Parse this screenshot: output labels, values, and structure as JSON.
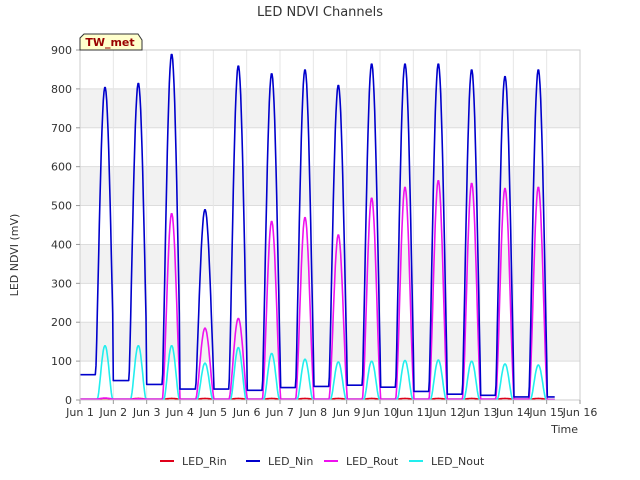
{
  "chart_data": {
    "type": "line",
    "title": "LED NDVI Channels",
    "xlabel": "Time",
    "ylabel": "LED NDVI (mV)",
    "xlim": [
      1,
      16
    ],
    "ylim": [
      0,
      900
    ],
    "x_ticks": [
      1,
      2,
      3,
      4,
      5,
      6,
      7,
      8,
      9,
      10,
      11,
      12,
      13,
      14,
      15,
      16
    ],
    "x_tick_labels": [
      "Jun 1",
      "Jun 2",
      "Jun 3",
      "Jun 4",
      "Jun 5",
      "Jun 6",
      "Jun 7",
      "Jun 8",
      "Jun 9",
      "Jun 10",
      "Jun 11",
      "Jun 12",
      "Jun 13",
      "Jun 14",
      "Jun 15",
      "Jun 16"
    ],
    "y_ticks": [
      0,
      100,
      200,
      300,
      400,
      500,
      600,
      700,
      800,
      900
    ],
    "y_tick_labels": [
      "0",
      "100",
      "200",
      "300",
      "400",
      "500",
      "600",
      "700",
      "800",
      "900"
    ],
    "grid": true,
    "alternating_bands": true,
    "legend_position": "bottom",
    "site_label": "TW_met",
    "colors": {
      "LED_Rin": "#e0001a",
      "LED_Nin": "#0000cc",
      "LED_Rout": "#ee11ee",
      "LED_Nout": "#22eeee",
      "band": "#f2f2f2",
      "site_bg": "#ffffcc",
      "site_text": "#990000"
    },
    "daily": [
      {
        "day": 1.75,
        "Nin": 805,
        "Rout": 5,
        "Nout": 140
      },
      {
        "day": 2.75,
        "Nin": 815,
        "Rout": 3,
        "Nout": 140
      },
      {
        "day": 3.75,
        "Nin": 890,
        "Rout": 480,
        "Nout": 140
      },
      {
        "day": 4.75,
        "Nin": 490,
        "Rout": 185,
        "Nout": 95
      },
      {
        "day": 5.75,
        "Nin": 860,
        "Rout": 210,
        "Nout": 135
      },
      {
        "day": 6.75,
        "Nin": 840,
        "Rout": 460,
        "Nout": 120
      },
      {
        "day": 7.75,
        "Nin": 850,
        "Rout": 470,
        "Nout": 105
      },
      {
        "day": 8.75,
        "Nin": 810,
        "Rout": 425,
        "Nout": 98
      },
      {
        "day": 9.75,
        "Nin": 865,
        "Rout": 520,
        "Nout": 100
      },
      {
        "day": 10.75,
        "Nin": 865,
        "Rout": 548,
        "Nout": 102
      },
      {
        "day": 11.75,
        "Nin": 865,
        "Rout": 565,
        "Nout": 103
      },
      {
        "day": 12.75,
        "Nin": 850,
        "Rout": 558,
        "Nout": 100
      },
      {
        "day": 13.75,
        "Nin": 833,
        "Rout": 545,
        "Nout": 93
      },
      {
        "day": 14.75,
        "Nin": 850,
        "Rout": 548,
        "Nout": 90
      }
    ],
    "night_Nin": [
      65,
      50,
      40,
      28,
      28,
      25,
      32,
      35,
      38,
      33,
      22,
      15,
      12,
      8,
      8
    ],
    "series": [
      {
        "name": "LED_Rin",
        "key": "Rin"
      },
      {
        "name": "LED_Nin",
        "key": "Nin"
      },
      {
        "name": "LED_Rout",
        "key": "Rout"
      },
      {
        "name": "LED_Nout",
        "key": "Nout"
      }
    ]
  }
}
